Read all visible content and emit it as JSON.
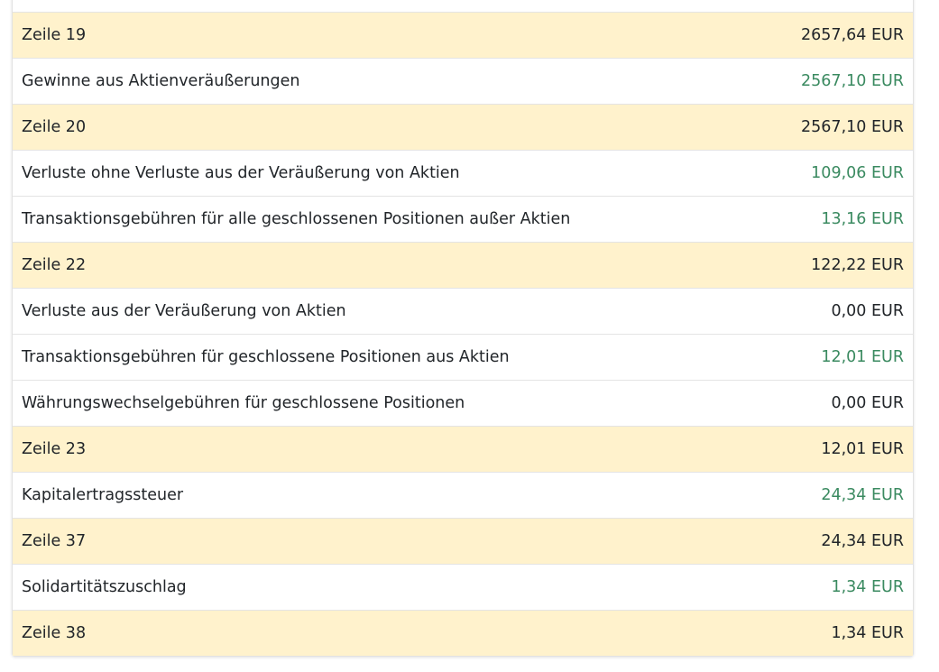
{
  "colors": {
    "total_row_bg": "#fff2cc",
    "positive_value": "#3a8a60",
    "text": "#212529"
  },
  "rows": [
    {
      "label": "",
      "value": "",
      "type": "detail",
      "green": false
    },
    {
      "label": "Zeile 19",
      "value": "2657,64 EUR",
      "type": "total",
      "green": false
    },
    {
      "label": "Gewinne aus Aktienveräußerungen",
      "value": "2567,10 EUR",
      "type": "detail",
      "green": true
    },
    {
      "label": "Zeile 20",
      "value": "2567,10 EUR",
      "type": "total",
      "green": false
    },
    {
      "label": "Verluste ohne Verluste aus der Veräußerung von Aktien",
      "value": "109,06 EUR",
      "type": "detail",
      "green": true
    },
    {
      "label": "Transaktionsgebühren für alle geschlossenen Positionen außer Aktien",
      "value": "13,16 EUR",
      "type": "detail",
      "green": true
    },
    {
      "label": "Zeile 22",
      "value": "122,22 EUR",
      "type": "total",
      "green": false
    },
    {
      "label": "Verluste aus der Veräußerung von Aktien",
      "value": "0,00 EUR",
      "type": "detail",
      "green": false
    },
    {
      "label": "Transaktionsgebühren für geschlossene Positionen aus Aktien",
      "value": "12,01 EUR",
      "type": "detail",
      "green": true
    },
    {
      "label": "Währungswechselgebühren für geschlossene Positionen",
      "value": "0,00 EUR",
      "type": "detail",
      "green": false
    },
    {
      "label": "Zeile 23",
      "value": "12,01 EUR",
      "type": "total",
      "green": false
    },
    {
      "label": "Kapitalertragssteuer",
      "value": "24,34 EUR",
      "type": "detail",
      "green": true
    },
    {
      "label": "Zeile 37",
      "value": "24,34 EUR",
      "type": "total",
      "green": false
    },
    {
      "label": "Solidartitätszuschlag",
      "value": "1,34 EUR",
      "type": "detail",
      "green": true
    },
    {
      "label": "Zeile 38",
      "value": "1,34 EUR",
      "type": "total",
      "green": false
    }
  ]
}
